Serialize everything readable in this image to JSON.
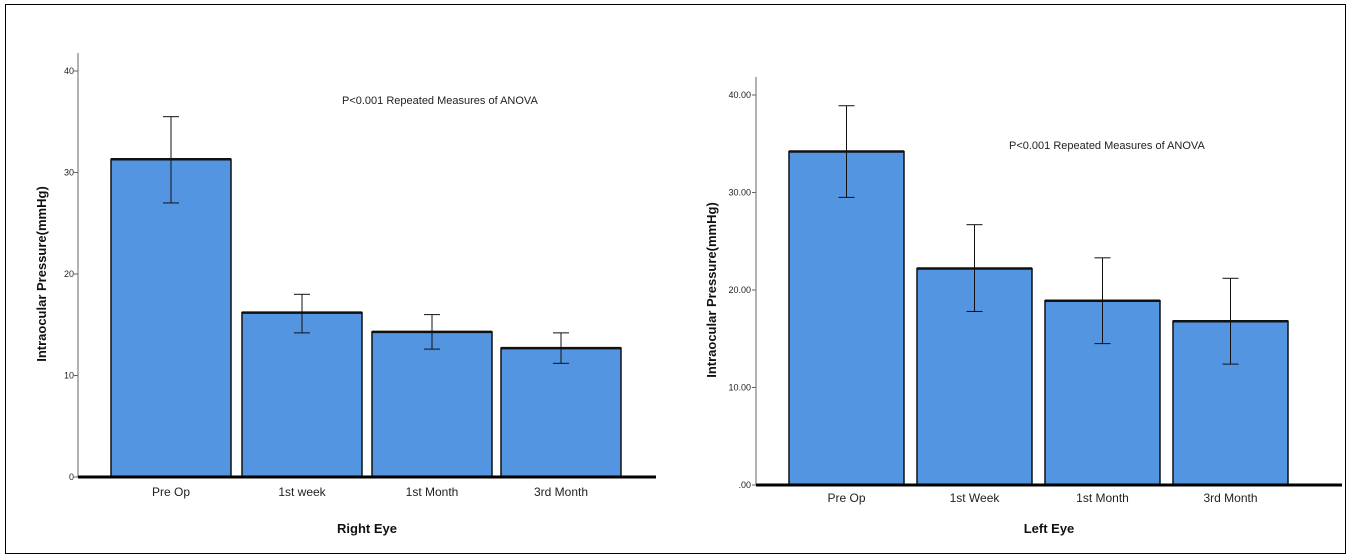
{
  "charts": {
    "colors": {
      "bar": "#5495e2",
      "edge": "#111111"
    },
    "chart_data": [
      {
        "type": "bar",
        "categories": [
          "Pre Op",
          "1st week",
          "1st Month",
          "3rd Month"
        ],
        "values": [
          31.3,
          16.2,
          14.3,
          12.7
        ],
        "error_bars": [
          [
            27.0,
            35.5
          ],
          [
            14.2,
            18.0
          ],
          [
            12.6,
            16.0
          ],
          [
            11.2,
            14.2
          ]
        ],
        "xlabel": "Right Eye",
        "ylabel": "Intraocular Pressure(mmHg)",
        "ylim": [
          0,
          40
        ],
        "yticks": [
          0,
          10,
          20,
          30,
          40
        ],
        "ytick_labels": [
          "0",
          "10",
          "20",
          "30",
          "40"
        ],
        "annotation": "P<0.001 Repeated Measures of ANOVA"
      },
      {
        "type": "bar",
        "categories": [
          "Pre Op",
          "1st Week",
          "1st Month",
          "3rd Month"
        ],
        "values": [
          34.2,
          22.2,
          18.9,
          16.8
        ],
        "error_bars": [
          [
            29.5,
            38.9
          ],
          [
            17.8,
            26.7
          ],
          [
            14.5,
            23.3
          ],
          [
            12.4,
            21.2
          ]
        ],
        "xlabel": "Left Eye",
        "ylabel": "Intraocular Pressure(mmHg)",
        "ylim": [
          0,
          40
        ],
        "yticks": [
          0,
          10,
          20,
          30,
          40
        ],
        "ytick_labels": [
          ".00",
          "10.00",
          "20.00",
          "30.00",
          "40.00"
        ],
        "annotation": "P<0.001 Repeated Measures of ANOVA"
      }
    ]
  }
}
